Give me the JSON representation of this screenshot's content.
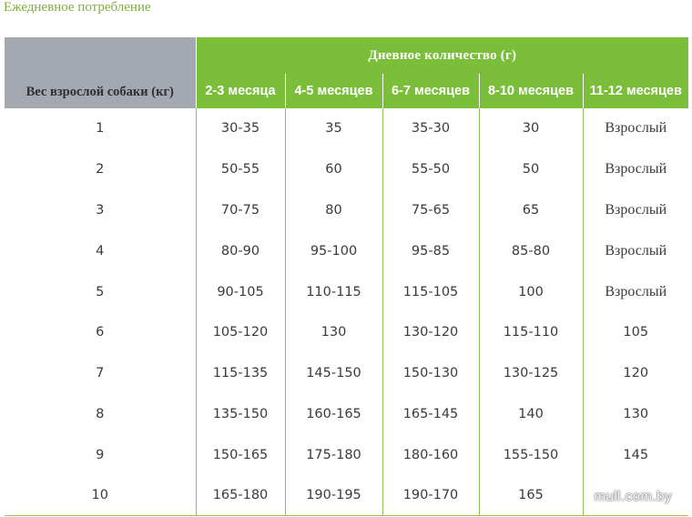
{
  "page": {
    "title": "Ежедневное потребление"
  },
  "table": {
    "weight_header": "Вес взрослой собаки (кг)",
    "group_header": "Дневное количество (г)",
    "age_columns": [
      "2-3 месяца",
      "4-5 месяцев",
      "6-7 месяцев",
      "8-10 месяцев",
      "11-12 месяцев"
    ],
    "rows": [
      [
        "1",
        "30-35",
        "35",
        "35-30",
        "30",
        "Взрослый"
      ],
      [
        "2",
        "50-55",
        "60",
        "55-50",
        "50",
        "Взрослый"
      ],
      [
        "3",
        "70-75",
        "80",
        "75-65",
        "65",
        "Взрослый"
      ],
      [
        "4",
        "80-90",
        "95-100",
        "95-85",
        "85-80",
        "Взрослый"
      ],
      [
        "5",
        "90-105",
        "110-115",
        "115-105",
        "100",
        "Взрослый"
      ],
      [
        "6",
        "105-120",
        "130",
        "130-120",
        "115-110",
        "105"
      ],
      [
        "7",
        "115-135",
        "145-150",
        "150-130",
        "130-125",
        "120"
      ],
      [
        "8",
        "135-150",
        "160-165",
        "165-145",
        "140",
        "130"
      ],
      [
        "9",
        "150-165",
        "175-180",
        "180-160",
        "155-150",
        "145"
      ],
      [
        "10",
        "165-180",
        "190-195",
        "190-170",
        "165",
        ""
      ]
    ]
  },
  "watermark": "mull.com.by",
  "colors": {
    "accent_green": "#7bbe3a",
    "header_gray": "#a4a8b0",
    "title_green": "#7fae3c"
  }
}
